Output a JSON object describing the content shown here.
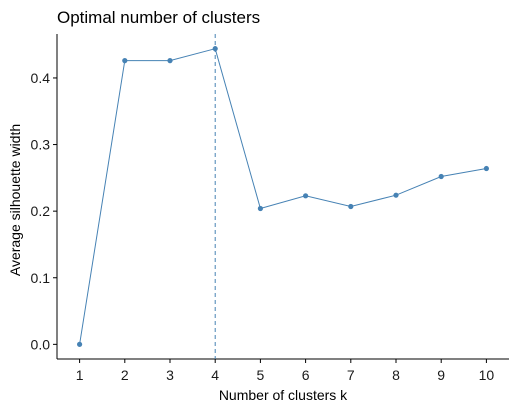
{
  "chart_data": {
    "type": "line",
    "title": "Optimal number of clusters",
    "xlabel": "Number of clusters k",
    "ylabel": "Average silhouette width",
    "x": [
      1,
      2,
      3,
      4,
      5,
      6,
      7,
      8,
      9,
      10
    ],
    "series": [
      {
        "values": [
          0.0,
          0.426,
          0.426,
          0.444,
          0.204,
          0.223,
          0.207,
          0.224,
          0.252,
          0.264
        ]
      }
    ],
    "x_ticks": [
      1,
      2,
      3,
      4,
      5,
      6,
      7,
      8,
      9,
      10
    ],
    "y_ticks": [
      0.0,
      0.1,
      0.2,
      0.3,
      0.4
    ],
    "y_tick_labels": [
      "0.0",
      "0.1",
      "0.2",
      "0.3",
      "0.4"
    ],
    "xlim": [
      0.5,
      10.5
    ],
    "ylim": [
      -0.022,
      0.466
    ],
    "reference_line": {
      "x": 4,
      "style": "dashed"
    },
    "grid": false,
    "colors": {
      "line": "#4682b4",
      "axis": "#000000"
    }
  }
}
